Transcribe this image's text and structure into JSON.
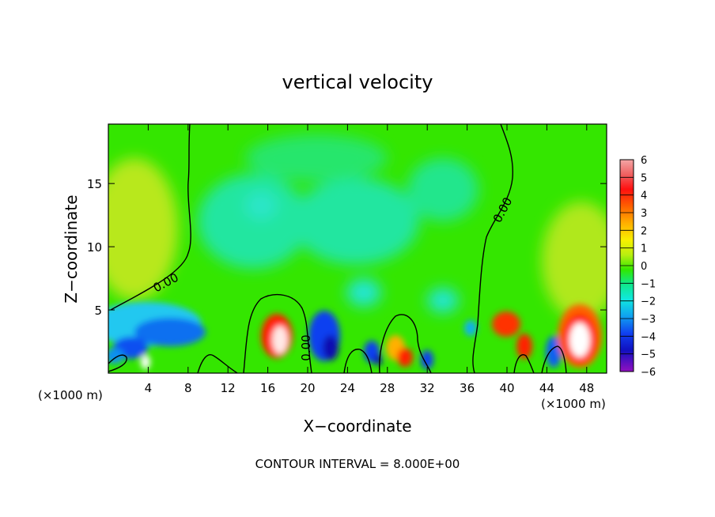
{
  "chart_data": {
    "type": "heatmap",
    "title": "vertical velocity",
    "xlabel": "X−coordinate",
    "ylabel": "Z−coordinate",
    "x_unit_label": "(×1000 m)",
    "z_unit_label": "(×1000 m)",
    "xlim": [
      0,
      50
    ],
    "ylim": [
      0,
      19.7
    ],
    "x_ticks": [
      4,
      8,
      12,
      16,
      20,
      24,
      28,
      32,
      36,
      40,
      44,
      48
    ],
    "y_ticks": [
      5,
      10,
      15
    ],
    "colorbar": {
      "ticks": [
        6,
        5,
        4,
        3,
        2,
        1,
        0,
        -1,
        -2,
        -3,
        -4,
        -5,
        -6
      ],
      "tick_labels": [
        "6",
        "5",
        "4",
        "3",
        "2",
        "1",
        "0",
        "−1",
        "−2",
        "−3",
        "−4",
        "−5",
        "−6"
      ]
    },
    "contour_labels": [
      "0.00",
      "0.00",
      "0.00"
    ],
    "footer": "CONTOUR INTERVAL = 8.000E+00",
    "features": [
      {
        "x": 17.5,
        "z": 2.8,
        "w": 5.0
      },
      {
        "x": 20.8,
        "z": 3.0,
        "w": -5.0
      },
      {
        "x": 26.5,
        "z": 1.6,
        "w": -4.5
      },
      {
        "x": 30.0,
        "z": 1.2,
        "w": 4.5
      },
      {
        "x": 32.0,
        "z": 0.9,
        "w": -4.5
      },
      {
        "x": 40.8,
        "z": 3.4,
        "w": 4.5
      },
      {
        "x": 42.0,
        "z": 2.0,
        "w": 5.0
      },
      {
        "x": 47.0,
        "z": 2.8,
        "w": 6.5
      },
      {
        "x": 3.8,
        "z": 1.0,
        "w": 6.5
      },
      {
        "x": 6.5,
        "z": 3.5,
        "w": -3.2
      },
      {
        "x": 1.2,
        "z": 3.0,
        "w": -3.0
      }
    ]
  }
}
